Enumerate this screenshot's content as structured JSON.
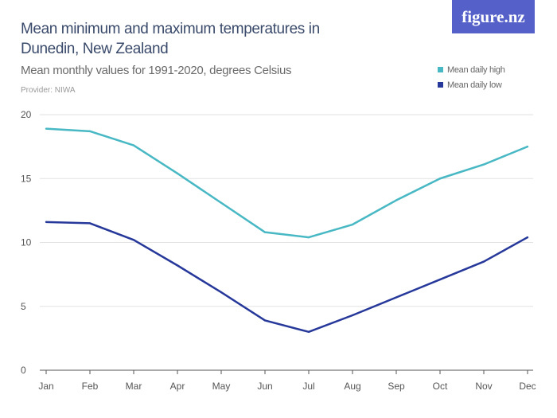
{
  "brand": {
    "logo_text": "figure.nz",
    "color": "#5560c9"
  },
  "chart_data": {
    "type": "line",
    "title": "Mean minimum and maximum temperatures in Dunedin, New Zealand",
    "subtitle": "Mean monthly values for 1991-2020, degrees Celsius",
    "provider": "Provider: NIWA",
    "categories": [
      "Jan",
      "Feb",
      "Mar",
      "Apr",
      "May",
      "Jun",
      "Jul",
      "Aug",
      "Sep",
      "Oct",
      "Nov",
      "Dec"
    ],
    "series": [
      {
        "name": "Mean daily high",
        "color": "#48b8c4",
        "values": [
          18.9,
          18.7,
          17.6,
          15.4,
          13.1,
          10.8,
          10.4,
          11.4,
          13.3,
          15.0,
          16.1,
          17.5
        ]
      },
      {
        "name": "Mean daily low",
        "color": "#26389a",
        "values": [
          11.6,
          11.5,
          10.2,
          8.2,
          6.1,
          3.9,
          3.0,
          4.3,
          5.7,
          7.1,
          8.5,
          10.4
        ]
      }
    ],
    "ylim": [
      0,
      20
    ],
    "yticks": [
      "0",
      "5",
      "10",
      "15",
      "20"
    ],
    "grid": true,
    "legend_position": "top-right"
  }
}
